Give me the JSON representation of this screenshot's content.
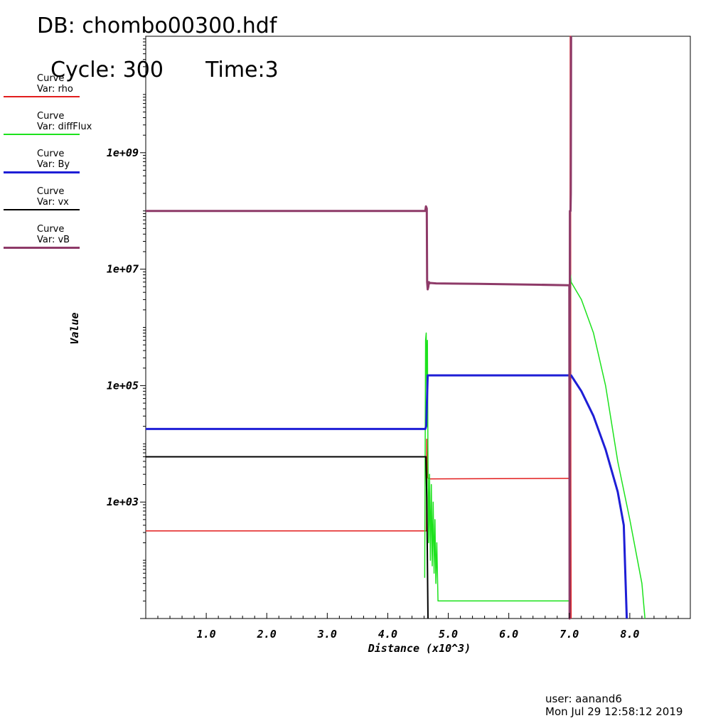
{
  "header": {
    "db": "DB: chombo00300.hdf",
    "cycle": "Cycle: 300",
    "time": "Time:3"
  },
  "legend": [
    {
      "line1": "Curve",
      "line2": "Var: rho",
      "color": "#e21d1d"
    },
    {
      "line1": "Curve",
      "line2": "Var: diffFlux",
      "color": "#1de21d"
    },
    {
      "line1": "Curve",
      "line2": "Var: By",
      "color": "#1e1ed6"
    },
    {
      "line1": "Curve",
      "line2": "Var: vx",
      "color": "#000000"
    },
    {
      "line1": "Curve",
      "line2": "Var: vB",
      "color": "#8e3a68"
    }
  ],
  "footer": {
    "user": "user: aanand6",
    "date": "Mon Jul 29 12:58:12 2019"
  },
  "chart_data": {
    "type": "line",
    "xlabel": "Distance (x10^3)",
    "ylabel": "Value",
    "xlim": [
      0,
      9.0
    ],
    "ylim": [
      10,
      100000000000
    ],
    "yscale": "log",
    "x_ticks": [
      "1.0",
      "2.0",
      "3.0",
      "4.0",
      "5.0",
      "6.0",
      "7.0",
      "8.0"
    ],
    "y_ticks": [
      "1e+03",
      "1e+05",
      "1e+07",
      "1e+09"
    ],
    "grid": false,
    "legend_position": "left",
    "series": [
      {
        "name": "rho",
        "color": "#e21d1d",
        "width": 1.5,
        "x": [
          0,
          4.64,
          4.645,
          4.66,
          4.7,
          7.0,
          7.01,
          7.015,
          7.02,
          7.025,
          7.03
        ],
        "y": [
          320,
          320,
          12000,
          2600,
          2500,
          2550,
          2550,
          100000000000,
          100000000000,
          2550,
          10
        ]
      },
      {
        "name": "diffFlux",
        "color": "#1de21d",
        "width": 1.5,
        "x": [
          4.61,
          4.625,
          4.635,
          4.645,
          4.655,
          4.665,
          4.675,
          4.69,
          4.705,
          4.72,
          4.735,
          4.75,
          4.765,
          4.78,
          4.795,
          4.81,
          4.83,
          7.0,
          7.01,
          7.02,
          7.03,
          7.2,
          7.4,
          7.6,
          7.8,
          8.0,
          8.2,
          8.25
        ],
        "y": [
          50,
          600000,
          800000,
          50000,
          600000,
          5000,
          200,
          3000,
          100,
          2000,
          80,
          1000,
          60,
          500,
          40,
          200,
          20,
          20,
          200000,
          8000000,
          6000000,
          3000000,
          800000,
          100000,
          5000,
          500,
          40,
          10
        ]
      },
      {
        "name": "By",
        "color": "#1e1ed6",
        "width": 3,
        "x": [
          0,
          4.62,
          4.635,
          4.66,
          4.7,
          7.0,
          7.03,
          7.2,
          7.4,
          7.6,
          7.8,
          7.9,
          7.95
        ],
        "y": [
          18000,
          18000,
          20000,
          150000,
          150000,
          150000,
          150000,
          80000,
          30000,
          8000,
          1500,
          400,
          10
        ]
      },
      {
        "name": "vx",
        "color": "#000000",
        "width": 2,
        "x": [
          0,
          4.63,
          4.645,
          4.65,
          4.66,
          4.665
        ],
        "y": [
          6000,
          6000,
          1200,
          300,
          30,
          10
        ]
      },
      {
        "name": "vB",
        "color": "#8e3a68",
        "width": 3,
        "x": [
          0,
          4.62,
          4.63,
          4.645,
          4.65,
          4.66,
          4.67,
          4.68,
          4.69,
          4.7,
          4.8,
          5.5,
          6.5,
          7.0,
          7.005,
          7.01,
          7.02,
          7.025,
          7.03
        ],
        "y": [
          100000000,
          100000000,
          120000000,
          110000000,
          6000000,
          4500000,
          5000000,
          6000000,
          5700000,
          5800000,
          5700000,
          5600000,
          5400000,
          5300000,
          10,
          100000000,
          100000000,
          200000000,
          100000000000
        ]
      }
    ]
  }
}
